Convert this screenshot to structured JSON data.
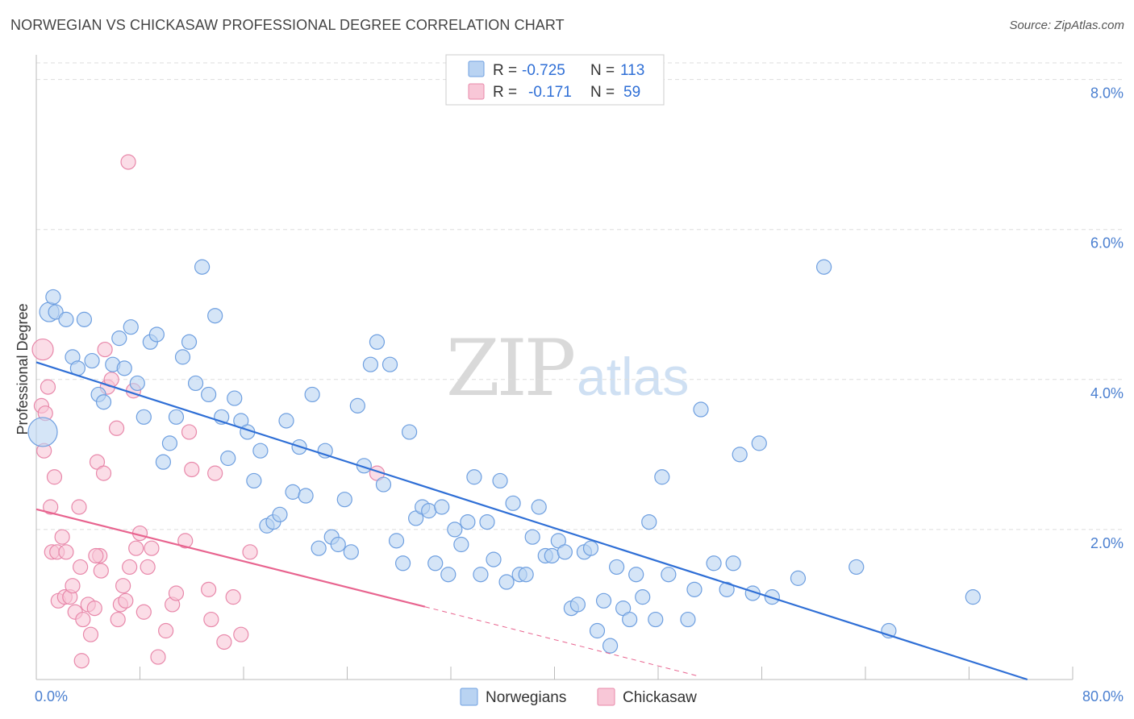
{
  "title": "NORWEGIAN VS CHICKASAW PROFESSIONAL DEGREE CORRELATION CHART",
  "source": "Source: ZipAtlas.com",
  "watermark": {
    "zip": "ZIP",
    "atlas": "atlas"
  },
  "chart_data": {
    "type": "scatter",
    "xlabel": "",
    "ylabel": "Professional Degree",
    "xlim": [
      0,
      80
    ],
    "ylim": [
      0,
      8.2
    ],
    "x_tick_labels": [
      "0.0%",
      "80.0%"
    ],
    "y_ticks": [
      2,
      4,
      6,
      8
    ],
    "y_tick_labels": [
      "2.0%",
      "4.0%",
      "6.0%",
      "8.0%"
    ],
    "legend": {
      "r_label": "R =",
      "n_label": "N =",
      "entries": [
        {
          "name": "Norwegians",
          "r": "-0.725",
          "n": "113",
          "fill": "#b9d3f2",
          "stroke": "#6e9fe0"
        },
        {
          "name": "Chickasaw",
          "r": "-0.171",
          "n": "59",
          "fill": "#f8c7d7",
          "stroke": "#e888aa"
        }
      ]
    },
    "colors": {
      "blue_line": "#2f6fd6",
      "pink_line": "#e8648f",
      "grid": "#dddddd"
    },
    "series": [
      {
        "name": "Norwegians",
        "trend": {
          "x0": 0,
          "y0": 4.23,
          "x1": 76.5,
          "y1": 0.0
        },
        "points": [
          [
            1.0,
            4.9,
            12
          ],
          [
            1.3,
            5.1,
            9
          ],
          [
            1.5,
            4.9,
            9
          ],
          [
            2.3,
            4.8,
            9
          ],
          [
            3.7,
            4.8,
            9
          ],
          [
            0.5,
            3.3,
            18
          ],
          [
            2.8,
            4.3,
            9
          ],
          [
            3.2,
            4.15,
            9
          ],
          [
            4.3,
            4.25,
            9
          ],
          [
            4.8,
            3.8,
            9
          ],
          [
            5.2,
            3.7,
            9
          ],
          [
            5.9,
            4.2,
            9
          ],
          [
            6.4,
            4.55,
            9
          ],
          [
            6.8,
            4.15,
            9
          ],
          [
            7.3,
            4.7,
            9
          ],
          [
            7.8,
            3.95,
            9
          ],
          [
            8.3,
            3.5,
            9
          ],
          [
            8.8,
            4.5,
            9
          ],
          [
            9.3,
            4.6,
            9
          ],
          [
            9.8,
            2.9,
            9
          ],
          [
            10.3,
            3.15,
            9
          ],
          [
            10.8,
            3.5,
            9
          ],
          [
            11.3,
            4.3,
            9
          ],
          [
            11.8,
            4.5,
            9
          ],
          [
            12.3,
            3.95,
            9
          ],
          [
            12.8,
            5.5,
            9
          ],
          [
            13.3,
            3.8,
            9
          ],
          [
            13.8,
            4.85,
            9
          ],
          [
            14.3,
            3.5,
            9
          ],
          [
            14.8,
            2.95,
            9
          ],
          [
            15.3,
            3.75,
            9
          ],
          [
            15.8,
            3.45,
            9
          ],
          [
            16.3,
            3.3,
            9
          ],
          [
            16.8,
            2.65,
            9
          ],
          [
            17.3,
            3.05,
            9
          ],
          [
            17.8,
            2.05,
            9
          ],
          [
            18.3,
            2.1,
            9
          ],
          [
            18.8,
            2.2,
            9
          ],
          [
            19.3,
            3.45,
            9
          ],
          [
            19.8,
            2.5,
            9
          ],
          [
            20.3,
            3.1,
            9
          ],
          [
            20.8,
            2.45,
            9
          ],
          [
            21.3,
            3.8,
            9
          ],
          [
            21.8,
            1.75,
            9
          ],
          [
            22.3,
            3.05,
            9
          ],
          [
            22.8,
            1.9,
            9
          ],
          [
            23.3,
            1.8,
            9
          ],
          [
            23.8,
            2.4,
            9
          ],
          [
            24.3,
            1.7,
            9
          ],
          [
            24.8,
            3.65,
            9
          ],
          [
            25.3,
            2.85,
            9
          ],
          [
            25.8,
            4.2,
            9
          ],
          [
            26.3,
            4.5,
            9
          ],
          [
            26.8,
            2.6,
            9
          ],
          [
            27.3,
            4.2,
            9
          ],
          [
            27.8,
            1.85,
            9
          ],
          [
            28.3,
            1.55,
            9
          ],
          [
            28.8,
            3.3,
            9
          ],
          [
            29.3,
            2.15,
            9
          ],
          [
            29.8,
            2.3,
            9
          ],
          [
            30.3,
            2.25,
            9
          ],
          [
            30.8,
            1.55,
            9
          ],
          [
            31.3,
            2.3,
            9
          ],
          [
            31.8,
            1.4,
            9
          ],
          [
            32.3,
            2.0,
            9
          ],
          [
            32.8,
            1.8,
            9
          ],
          [
            33.3,
            2.1,
            9
          ],
          [
            33.8,
            2.7,
            9
          ],
          [
            34.3,
            1.4,
            9
          ],
          [
            34.8,
            2.1,
            9
          ],
          [
            35.3,
            1.6,
            9
          ],
          [
            35.8,
            2.65,
            9
          ],
          [
            36.3,
            1.3,
            9
          ],
          [
            36.8,
            2.35,
            9
          ],
          [
            37.3,
            1.4,
            9
          ],
          [
            37.8,
            1.4,
            9
          ],
          [
            38.3,
            1.9,
            9
          ],
          [
            38.8,
            2.3,
            9
          ],
          [
            39.3,
            1.65,
            9
          ],
          [
            39.8,
            1.65,
            9
          ],
          [
            40.3,
            1.85,
            9
          ],
          [
            40.8,
            1.7,
            9
          ],
          [
            41.3,
            0.95,
            9
          ],
          [
            41.8,
            1.0,
            9
          ],
          [
            42.3,
            1.7,
            9
          ],
          [
            42.8,
            1.75,
            9
          ],
          [
            43.3,
            0.65,
            9
          ],
          [
            43.8,
            1.05,
            9
          ],
          [
            44.3,
            0.45,
            9
          ],
          [
            44.8,
            1.5,
            9
          ],
          [
            45.3,
            0.95,
            9
          ],
          [
            45.8,
            0.8,
            9
          ],
          [
            46.3,
            1.4,
            9
          ],
          [
            46.8,
            1.1,
            9
          ],
          [
            47.3,
            2.1,
            9
          ],
          [
            47.8,
            0.8,
            9
          ],
          [
            48.3,
            2.7,
            9
          ],
          [
            48.8,
            1.4,
            9
          ],
          [
            50.3,
            0.8,
            9
          ],
          [
            50.8,
            1.2,
            9
          ],
          [
            51.3,
            3.6,
            9
          ],
          [
            52.3,
            1.55,
            9
          ],
          [
            53.3,
            1.2,
            9
          ],
          [
            53.8,
            1.55,
            9
          ],
          [
            54.3,
            3.0,
            9
          ],
          [
            55.3,
            1.15,
            9
          ],
          [
            55.8,
            3.15,
            9
          ],
          [
            56.8,
            1.1,
            9
          ],
          [
            58.8,
            1.35,
            9
          ],
          [
            60.8,
            5.5,
            9
          ],
          [
            63.3,
            1.5,
            9
          ],
          [
            65.8,
            0.65,
            9
          ],
          [
            72.3,
            1.1,
            9
          ]
        ]
      },
      {
        "name": "Chickasaw",
        "trend": {
          "x0": 0,
          "y0": 2.27,
          "x1": 30.0,
          "y1": 0.97
        },
        "trend_dashed": {
          "x0": 30.0,
          "y0": 0.97,
          "x1": 51.0,
          "y1": 0.05
        },
        "points": [
          [
            0.5,
            4.4,
            13
          ],
          [
            0.4,
            3.65,
            9
          ],
          [
            0.7,
            3.55,
            9
          ],
          [
            0.6,
            3.05,
            9
          ],
          [
            0.9,
            3.9,
            9
          ],
          [
            1.4,
            2.7,
            9
          ],
          [
            1.1,
            2.3,
            9
          ],
          [
            2.0,
            1.9,
            9
          ],
          [
            1.2,
            1.7,
            9
          ],
          [
            1.6,
            1.7,
            9
          ],
          [
            2.3,
            1.7,
            9
          ],
          [
            1.7,
            1.05,
            9
          ],
          [
            2.2,
            1.1,
            9
          ],
          [
            2.6,
            1.1,
            9
          ],
          [
            2.8,
            1.25,
            9
          ],
          [
            3.0,
            0.9,
            9
          ],
          [
            3.3,
            2.3,
            9
          ],
          [
            3.4,
            1.5,
            9
          ],
          [
            3.6,
            0.8,
            9
          ],
          [
            3.5,
            0.25,
            9
          ],
          [
            4.0,
            1.0,
            9
          ],
          [
            4.2,
            0.6,
            9
          ],
          [
            4.5,
            0.95,
            9
          ],
          [
            4.7,
            2.9,
            9
          ],
          [
            4.9,
            1.65,
            9
          ],
          [
            5.0,
            1.45,
            9
          ],
          [
            5.2,
            2.75,
            9
          ],
          [
            5.5,
            3.9,
            9
          ],
          [
            5.8,
            4.0,
            9
          ],
          [
            6.2,
            3.35,
            9
          ],
          [
            6.3,
            0.8,
            9
          ],
          [
            6.5,
            1.0,
            9
          ],
          [
            6.7,
            1.25,
            9
          ],
          [
            6.9,
            1.05,
            9
          ],
          [
            7.2,
            1.5,
            9
          ],
          [
            7.5,
            3.85,
            9
          ],
          [
            7.7,
            1.75,
            9
          ],
          [
            8.0,
            1.95,
            9
          ],
          [
            8.3,
            0.9,
            9
          ],
          [
            8.6,
            1.5,
            9
          ],
          [
            8.9,
            1.75,
            9
          ],
          [
            9.4,
            0.3,
            9
          ],
          [
            10.0,
            0.65,
            9
          ],
          [
            10.5,
            1.0,
            9
          ],
          [
            10.8,
            1.15,
            9
          ],
          [
            11.5,
            1.85,
            9
          ],
          [
            11.8,
            3.3,
            9
          ],
          [
            12.0,
            2.8,
            9
          ],
          [
            13.3,
            1.2,
            9
          ],
          [
            13.5,
            0.8,
            9
          ],
          [
            13.8,
            2.75,
            9
          ],
          [
            14.5,
            0.5,
            9
          ],
          [
            15.2,
            1.1,
            9
          ],
          [
            15.8,
            0.6,
            9
          ],
          [
            16.5,
            1.7,
            9
          ],
          [
            26.3,
            2.75,
            9
          ],
          [
            7.1,
            6.9,
            9
          ],
          [
            5.3,
            4.4,
            9
          ],
          [
            4.6,
            1.65,
            9
          ]
        ]
      }
    ]
  }
}
